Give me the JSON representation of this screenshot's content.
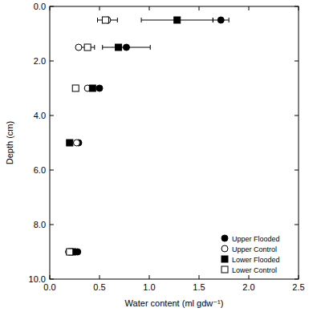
{
  "chart_data": {
    "type": "scatter",
    "x_label": "Water content (ml gdw⁻¹)",
    "y_label": "Depth (cm)",
    "xlim": [
      0,
      2.5
    ],
    "xticks": [
      {
        "value": 0,
        "label": "0.0"
      },
      0.5,
      {
        "value": 1,
        "label": "1.0"
      },
      1.5,
      {
        "value": 2,
        "label": "2.0"
      },
      2.5
    ],
    "ylim": [
      10,
      0
    ],
    "yticks": [
      {
        "value": 0,
        "label": "0.0"
      },
      {
        "value": 2,
        "label": "2.0"
      },
      {
        "value": 4,
        "label": "4.0"
      },
      {
        "value": 6,
        "label": "6.0"
      },
      {
        "value": 8,
        "label": "8.0"
      },
      {
        "value": 10,
        "label": "10.0"
      }
    ],
    "legend": "lower right",
    "series": [
      {
        "name": "Upper Flooded",
        "color": "#000000",
        "marker": "filled-circle",
        "x": [
          1.72,
          0.77,
          0.5,
          0.29,
          0.28
        ],
        "y": [
          0.5,
          1.5,
          3.0,
          5.0,
          9.0
        ],
        "x_error": [
          0.08,
          0.24,
          null,
          null,
          null
        ]
      },
      {
        "name": "Upper Control",
        "color": "#000000",
        "marker": "open-circle",
        "x": [
          0.58,
          0.29,
          0.38,
          0.27,
          0.19
        ],
        "y": [
          0.5,
          1.5,
          3.0,
          5.0,
          9.0
        ],
        "x_error": [
          0.1,
          null,
          null,
          null,
          null
        ]
      },
      {
        "name": "Lower Flooded",
        "color": "#000000",
        "marker": "filled-square",
        "x": [
          1.28,
          0.69,
          0.43,
          0.2,
          0.23
        ],
        "y": [
          0.5,
          1.5,
          3.0,
          5.0,
          9.0
        ],
        "x_error": [
          0.36,
          null,
          null,
          null,
          null
        ]
      },
      {
        "name": "Lower Control",
        "color": "#000000",
        "marker": "open-square",
        "x": [
          0.56,
          0.38,
          0.26,
          0.2
        ],
        "y": [
          0.5,
          1.5,
          3.0,
          9.0
        ],
        "x_error": [
          null,
          0.07,
          null,
          null
        ]
      }
    ]
  }
}
